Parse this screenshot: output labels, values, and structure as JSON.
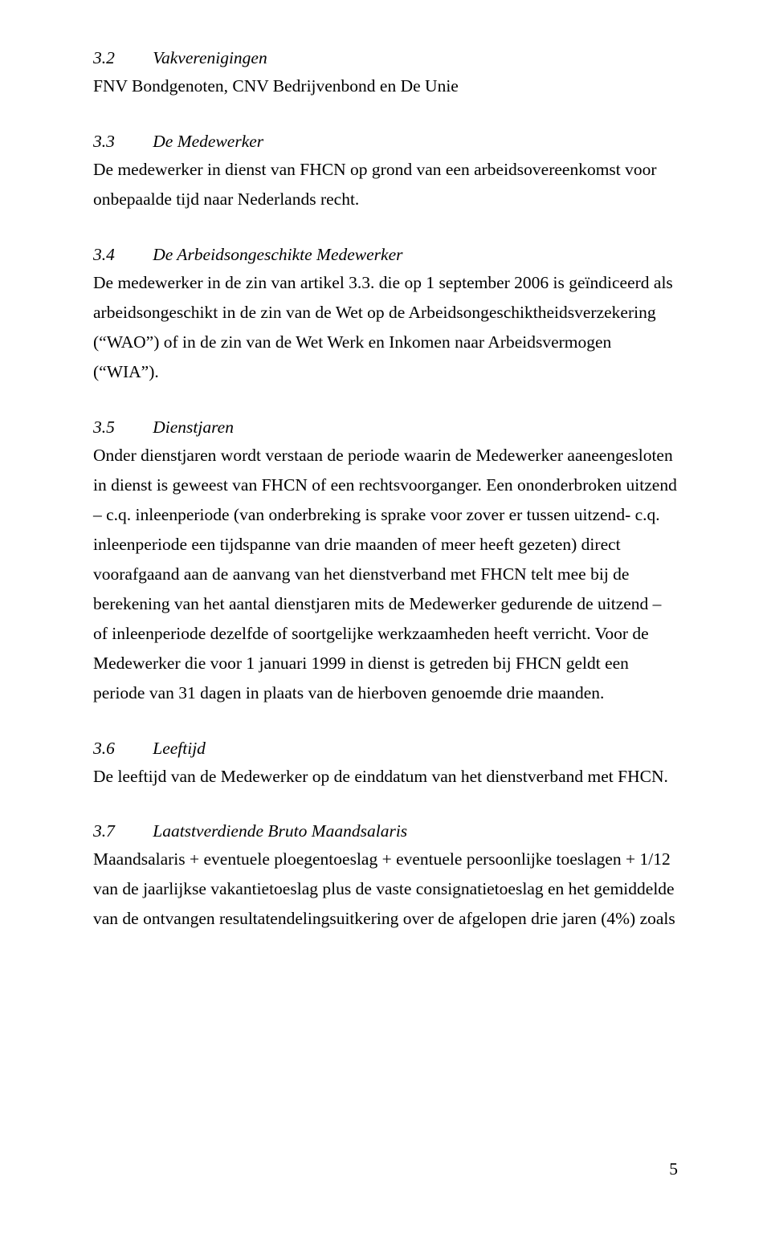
{
  "typography": {
    "font_family": "Times New Roman",
    "body_fontsize_pt": 16,
    "line_height": 1.72,
    "text_color": "#000000",
    "background_color": "#ffffff",
    "heading_style": "italic"
  },
  "page_number": "5",
  "sections": {
    "s1": {
      "number": "3.2",
      "title": "Vakverenigingen",
      "body": "FNV Bondgenoten, CNV Bedrijvenbond en De Unie"
    },
    "s2": {
      "number": "3.3",
      "title": "De Medewerker",
      "body": "De medewerker in dienst van FHCN op grond van een arbeidsovereenkomst voor onbepaalde tijd naar Nederlands recht."
    },
    "s3": {
      "number": "3.4",
      "title": "De Arbeidsongeschikte Medewerker",
      "body": "De medewerker in de zin van artikel 3.3. die op 1 september 2006 is geïndiceerd als arbeidsongeschikt in de zin van de Wet op de Arbeidsongeschiktheidsverzekering (“WAO”) of in de zin van de Wet Werk en Inkomen naar Arbeidsvermogen (“WIA”)."
    },
    "s4": {
      "number": "3.5",
      "title": "Dienstjaren",
      "body": "Onder dienstjaren wordt verstaan de periode waarin de Medewerker aaneengesloten in dienst is geweest van FHCN of een rechtsvoorganger. Een ononderbroken uitzend – c.q. inleenperiode (van onderbreking is sprake voor zover er tussen uitzend- c.q. inleenperiode een tijdspanne van drie maanden of meer heeft gezeten) direct voorafgaand aan de aanvang van het dienstverband met FHCN telt mee bij de berekening van het aantal dienstjaren mits de Medewerker gedurende de uitzend – of inleenperiode dezelfde of soortgelijke werkzaamheden heeft verricht. Voor de Medewerker die voor 1 januari 1999 in dienst is getreden bij FHCN geldt een periode van 31 dagen in plaats van de hierboven genoemde drie maanden."
    },
    "s5": {
      "number": "3.6",
      "title": "Leeftijd",
      "body": "De leeftijd van de Medewerker op de einddatum van het dienstverband met FHCN."
    },
    "s6": {
      "number": "3.7",
      "title": "Laatstverdiende Bruto Maandsalaris",
      "body": "Maandsalaris + eventuele ploegentoeslag + eventuele persoonlijke toeslagen + 1/12 van de jaarlijkse vakantietoeslag plus de vaste consignatietoeslag en het gemiddelde van de ontvangen resultatendelingsuitkering over de afgelopen drie jaren (4%) zoals"
    }
  }
}
